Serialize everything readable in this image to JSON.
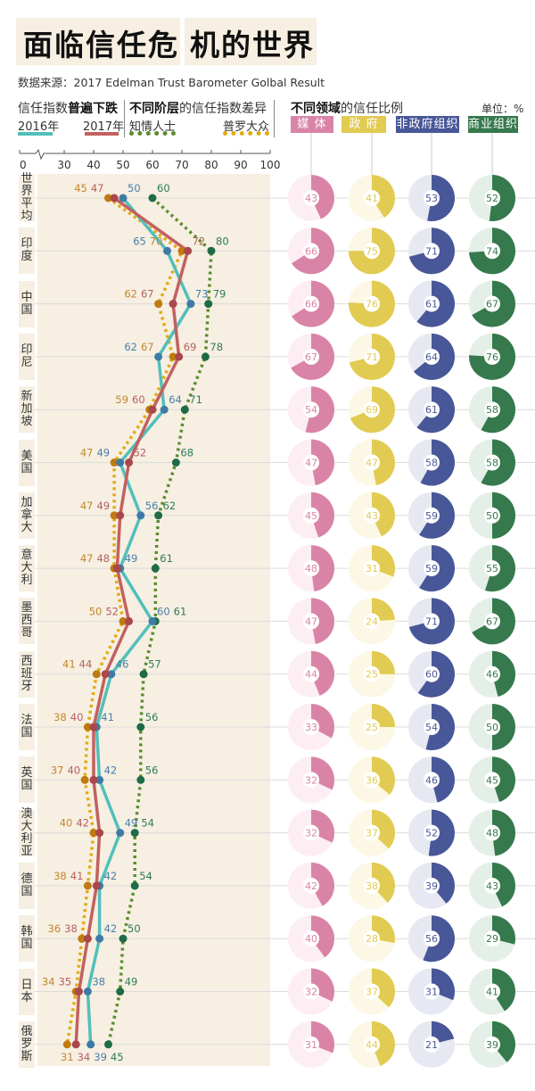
{
  "title": {
    "part1": "面临信任危",
    "part2": "机的世界"
  },
  "source": "数据来源：2017 Edelman Trust Barometer Golbal Result",
  "legend_left": {
    "title_plain": "信任指数",
    "title_bold": "普遍下跌",
    "y2016": "2016年",
    "y2017": "2017年"
  },
  "legend_mid": {
    "title_bold": "不同阶层",
    "title_plain": "的信任指数差异",
    "informed": "知情人士",
    "general": "普罗大众"
  },
  "legend_right": {
    "title_bold": "不同领域",
    "title_plain": "的信任比例",
    "unit": "单位：%",
    "sectors": [
      "媒 体",
      "政 府",
      "非政府组织",
      "商业组织"
    ]
  },
  "colors": {
    "y2016": "#52bfbb",
    "y2017": "#c2615f",
    "informed": "#5b8c2c",
    "general": "#e2a90c",
    "label2016": "#4a7fa8",
    "label2017": "#b55f5f",
    "labelInformed": "#2f7b58",
    "labelGeneral": "#c4862a",
    "dot2016": "#3f7aa6",
    "dot2017": "#a9474a",
    "dotInformed": "#1f6b47",
    "dotGeneral": "#bf7a10",
    "media": "#d984a7",
    "media_bg": "#fdeef4",
    "government": "#e1cb52",
    "government_bg": "#fcf8e5",
    "ngo": "#485797",
    "ngo_bg": "#e7e9f2",
    "business": "#36794d",
    "business_bg": "#e4efe8",
    "panel": "#f6efe2"
  },
  "chart_data": [
    {
      "type": "line",
      "axis": {
        "ticks": [
          "0",
          "30",
          "40",
          "50",
          "60",
          "70",
          "80",
          "90",
          "100"
        ],
        "range": [
          30,
          100
        ],
        "break_after_zero": true
      },
      "series": [
        {
          "name": "2016年",
          "key": "y2016"
        },
        {
          "name": "2017年",
          "key": "y2017"
        },
        {
          "name": "知情人士",
          "key": "informed"
        },
        {
          "name": "普罗大众",
          "key": "general"
        }
      ],
      "countries": [
        {
          "name": "世界平均",
          "y2016": 50,
          "y2017": 47,
          "informed": 60,
          "general": 45
        },
        {
          "name": "印度",
          "y2016": 65,
          "y2017": 72,
          "informed": 80,
          "general": 70
        },
        {
          "name": "中国",
          "y2016": 73,
          "y2017": 67,
          "informed": 79,
          "general": 62
        },
        {
          "name": "印尼",
          "y2016": 62,
          "y2017": 69,
          "informed": 78,
          "general": 67
        },
        {
          "name": "新加坡",
          "y2016": 64,
          "y2017": 60,
          "informed": 71,
          "general": 59
        },
        {
          "name": "美国",
          "y2016": 49,
          "y2017": 52,
          "informed": 68,
          "general": 47
        },
        {
          "name": "加拿大",
          "y2016": 56,
          "y2017": 49,
          "informed": 62,
          "general": 47
        },
        {
          "name": "意大利",
          "y2016": 49,
          "y2017": 48,
          "informed": 61,
          "general": 47
        },
        {
          "name": "墨西哥",
          "y2016": 60,
          "y2017": 52,
          "informed": 61,
          "general": 50
        },
        {
          "name": "西班牙",
          "y2016": 46,
          "y2017": 44,
          "informed": 57,
          "general": 41
        },
        {
          "name": "法国",
          "y2016": 41,
          "y2017": 40,
          "informed": 56,
          "general": 38
        },
        {
          "name": "英国",
          "y2016": 42,
          "y2017": 40,
          "informed": 56,
          "general": 37
        },
        {
          "name": "澳大利亚",
          "y2016": 49,
          "y2017": 42,
          "informed": 54,
          "general": 40
        },
        {
          "name": "德国",
          "y2016": 42,
          "y2017": 41,
          "informed": 54,
          "general": 38
        },
        {
          "name": "韩国",
          "y2016": 42,
          "y2017": 38,
          "informed": 50,
          "general": 36
        },
        {
          "name": "日本",
          "y2016": 38,
          "y2017": 35,
          "informed": 49,
          "general": 34
        },
        {
          "name": "俄罗斯",
          "y2016": 39,
          "y2017": 34,
          "informed": 45,
          "general": 31
        }
      ]
    },
    {
      "type": "pie",
      "sectors": [
        "媒体",
        "政府",
        "非政府组织",
        "商业组织"
      ],
      "keys": [
        "media",
        "government",
        "ngo",
        "business"
      ],
      "values": [
        [
          43,
          41,
          53,
          52
        ],
        [
          66,
          75,
          71,
          74
        ],
        [
          66,
          76,
          61,
          67
        ],
        [
          67,
          71,
          64,
          76
        ],
        [
          54,
          69,
          61,
          58
        ],
        [
          47,
          47,
          58,
          58
        ],
        [
          45,
          43,
          59,
          50
        ],
        [
          48,
          31,
          59,
          55
        ],
        [
          47,
          24,
          71,
          67
        ],
        [
          44,
          25,
          60,
          46
        ],
        [
          33,
          25,
          54,
          50
        ],
        [
          32,
          36,
          46,
          45
        ],
        [
          32,
          37,
          52,
          48
        ],
        [
          42,
          38,
          39,
          43
        ],
        [
          40,
          28,
          56,
          29
        ],
        [
          32,
          37,
          31,
          41
        ],
        [
          31,
          44,
          21,
          39
        ]
      ]
    }
  ]
}
